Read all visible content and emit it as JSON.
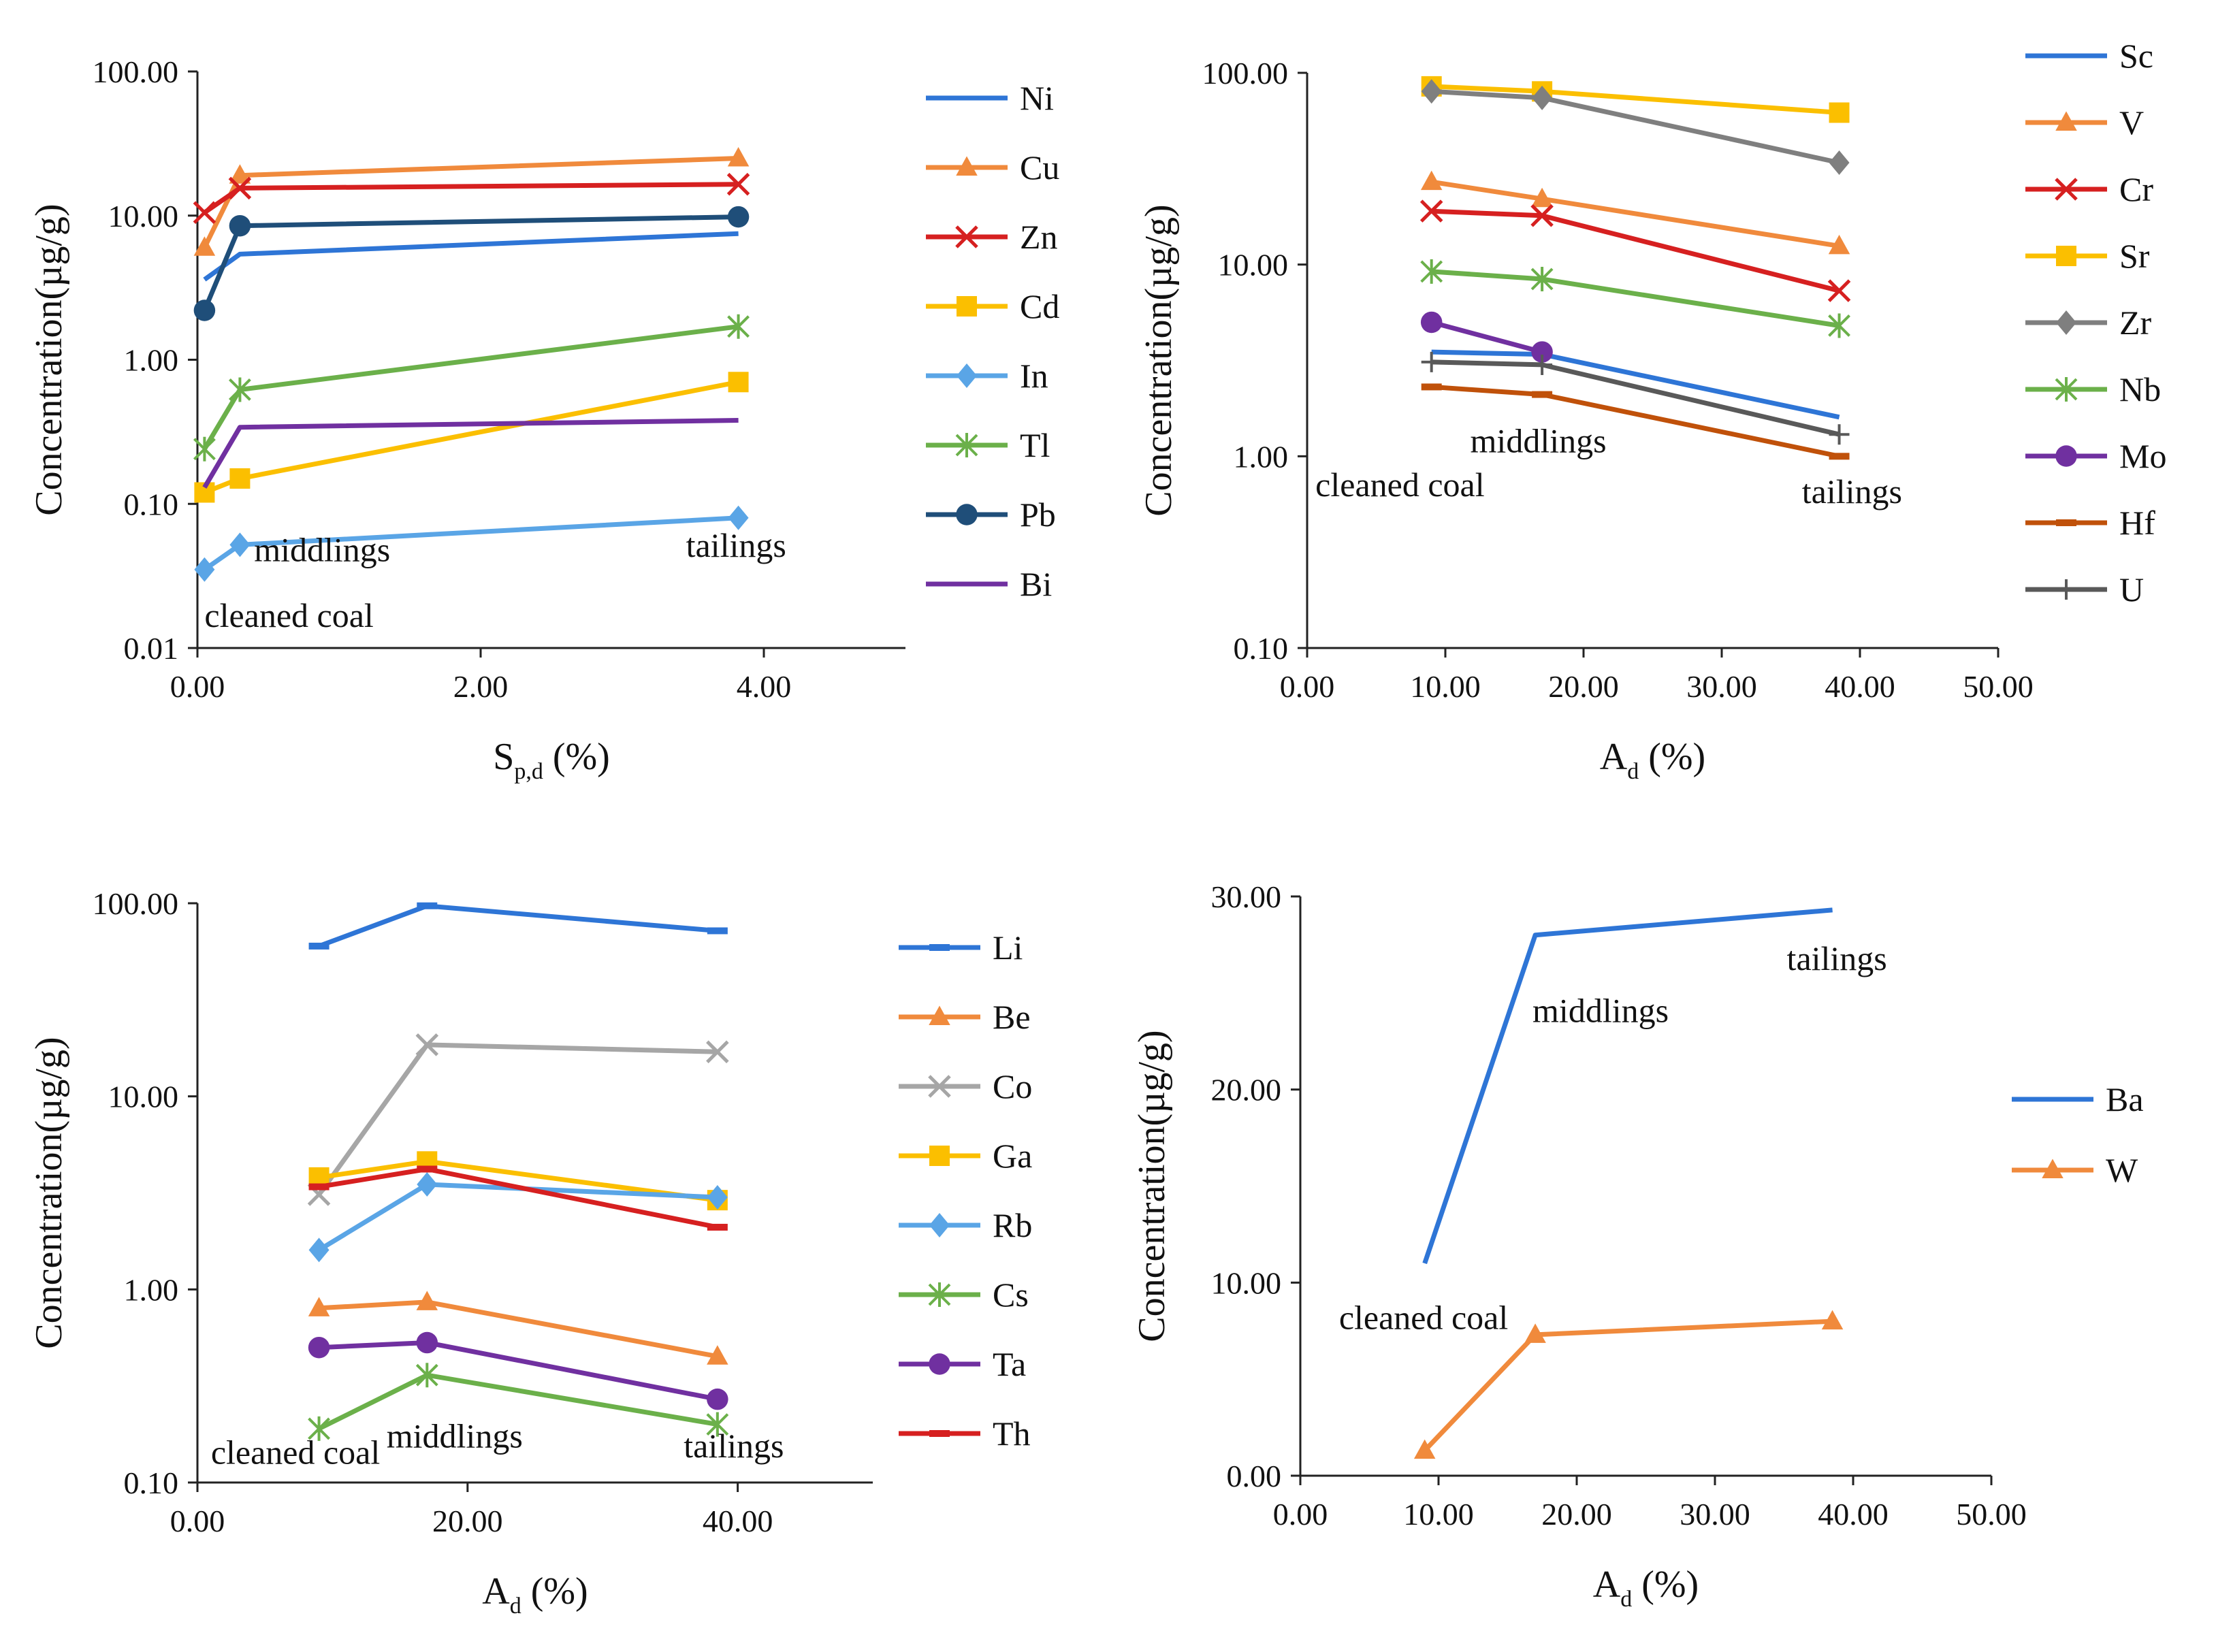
{
  "colors": {
    "blue": "#2e75d6",
    "orange": "#f08a3c",
    "red": "#d62020",
    "yellow": "#fbbf00",
    "light_blue": "#5aa5e6",
    "green": "#6bb04a",
    "navy": "#1f4e79",
    "purple": "#7030a0",
    "gray": "#7f7f7f",
    "light_gray": "#a6a6a6",
    "brown": "#c0510a",
    "dark_gray": "#595959",
    "axis": "#222222"
  },
  "chart_data": [
    {
      "id": "p1",
      "type": "line",
      "yscale": "log",
      "xlabel": "S",
      "xlabel_sub": "p,d",
      "xlabel_unit": " (%)",
      "ylabel": "Concentration(µg/g)",
      "xlim": [
        0,
        5
      ],
      "ylim": [
        0.01,
        100
      ],
      "xticks": [
        0,
        2,
        4
      ],
      "xtick_labels": [
        "0.00",
        "2.00",
        "4.00"
      ],
      "yticks": [
        0.01,
        0.1,
        1,
        10,
        100
      ],
      "ytick_labels": [
        "0.01",
        "0.10",
        "1.00",
        "10.00",
        "100.00"
      ],
      "annotations": [
        {
          "text": "cleaned coal",
          "x": 0.05,
          "y": 0.014,
          "anchor": "start"
        },
        {
          "text": "middlings",
          "x": 0.4,
          "y": 0.04,
          "anchor": "start"
        },
        {
          "text": "tailings",
          "x": 3.45,
          "y": 0.043,
          "anchor": "start"
        }
      ],
      "series": [
        {
          "name": "Ni",
          "color": "blue",
          "marker": "none",
          "x": [
            0.05,
            0.3,
            3.82
          ],
          "y": [
            3.6,
            5.4,
            7.5
          ]
        },
        {
          "name": "Cu",
          "color": "orange",
          "marker": "triangle",
          "x": [
            0.05,
            0.3,
            3.82
          ],
          "y": [
            6.0,
            19,
            25
          ]
        },
        {
          "name": "Zn",
          "color": "red",
          "marker": "x",
          "x": [
            0.05,
            0.3,
            3.82
          ],
          "y": [
            10.5,
            15.5,
            16.5
          ]
        },
        {
          "name": "Cd",
          "color": "yellow",
          "marker": "square",
          "x": [
            0.05,
            0.3,
            3.82
          ],
          "y": [
            0.12,
            0.15,
            0.7
          ]
        },
        {
          "name": "In",
          "color": "light_blue",
          "marker": "diamond",
          "x": [
            0.05,
            0.3,
            3.82
          ],
          "y": [
            0.035,
            0.052,
            0.08
          ]
        },
        {
          "name": "Tl",
          "color": "green",
          "marker": "star",
          "x": [
            0.05,
            0.3,
            3.82
          ],
          "y": [
            0.24,
            0.62,
            1.7
          ]
        },
        {
          "name": "Pb",
          "color": "navy",
          "marker": "circle",
          "x": [
            0.05,
            0.3,
            3.82
          ],
          "y": [
            2.2,
            8.5,
            9.8
          ]
        },
        {
          "name": "Bi",
          "color": "purple",
          "marker": "none",
          "x": [
            0.05,
            0.3,
            3.82
          ],
          "y": [
            0.13,
            0.34,
            0.38
          ]
        }
      ]
    },
    {
      "id": "p2",
      "type": "line",
      "yscale": "log",
      "xlabel": "A",
      "xlabel_sub": "d",
      "xlabel_unit": " (%)",
      "ylabel": "Concentration(µg/g)",
      "xlim": [
        0,
        50
      ],
      "ylim": [
        0.1,
        100
      ],
      "xticks": [
        0,
        10,
        20,
        30,
        40,
        50
      ],
      "xtick_labels": [
        "0.00",
        "10.00",
        "20.00",
        "30.00",
        "40.00",
        "50.00"
      ],
      "yticks": [
        0.1,
        1,
        10,
        100
      ],
      "ytick_labels": [
        "0.10",
        "1.00",
        "10.00",
        "100.00"
      ],
      "annotations": [
        {
          "text": "cleaned coal",
          "x": 0.6,
          "y": 0.62,
          "anchor": "start"
        },
        {
          "text": "middlings",
          "x": 11.8,
          "y": 1.05,
          "anchor": "start"
        },
        {
          "text": "tailings",
          "x": 35.8,
          "y": 0.57,
          "anchor": "start"
        }
      ],
      "series": [
        {
          "name": "Sc",
          "color": "blue",
          "marker": "none",
          "x": [
            9.0,
            17.0,
            38.5
          ],
          "y": [
            3.5,
            3.4,
            1.6
          ]
        },
        {
          "name": "V",
          "color": "orange",
          "marker": "triangle",
          "x": [
            9.0,
            17.0,
            38.5
          ],
          "y": [
            27,
            22,
            12.5
          ]
        },
        {
          "name": "Cr",
          "color": "red",
          "marker": "x",
          "x": [
            9.0,
            17.0,
            38.5
          ],
          "y": [
            19,
            18,
            7.3
          ]
        },
        {
          "name": "Sr",
          "color": "yellow",
          "marker": "square",
          "x": [
            9.0,
            17.0,
            38.5
          ],
          "y": [
            85,
            80,
            62
          ]
        },
        {
          "name": "Zr",
          "color": "gray",
          "marker": "diamond",
          "x": [
            9.0,
            17.0,
            38.5
          ],
          "y": [
            80,
            74,
            34
          ]
        },
        {
          "name": "Nb",
          "color": "green",
          "marker": "star",
          "x": [
            9.0,
            17.0,
            38.5
          ],
          "y": [
            9.2,
            8.4,
            4.8
          ]
        },
        {
          "name": "Mo",
          "color": "purple",
          "marker": "circle",
          "x": [
            9.0,
            17.0
          ],
          "y": [
            5.0,
            3.5
          ]
        },
        {
          "name": "Hf",
          "color": "brown",
          "marker": "dash",
          "x": [
            9.0,
            17.0,
            38.5
          ],
          "y": [
            2.3,
            2.1,
            1.0
          ]
        },
        {
          "name": "U",
          "color": "dark_gray",
          "marker": "plus",
          "x": [
            9.0,
            17.0,
            38.5
          ],
          "y": [
            3.1,
            3.0,
            1.3
          ]
        }
      ]
    },
    {
      "id": "p3",
      "type": "line",
      "yscale": "log",
      "xlabel": "A",
      "xlabel_sub": "d",
      "xlabel_unit": " (%)",
      "ylabel": "Concentration(µg/g)",
      "xlim": [
        0,
        50
      ],
      "ylim": [
        0.1,
        100
      ],
      "xticks": [
        0,
        20,
        40
      ],
      "xtick_labels": [
        "0.00",
        "20.00",
        "40.00"
      ],
      "yticks": [
        0.1,
        1,
        10,
        100
      ],
      "ytick_labels": [
        "0.10",
        "1.00",
        "10.00",
        "100.00"
      ],
      "annotations": [
        {
          "text": "cleaned coal",
          "x": 1.0,
          "y": 0.125,
          "anchor": "start"
        },
        {
          "text": "middlings",
          "x": 14.0,
          "y": 0.152,
          "anchor": "start"
        },
        {
          "text": "tailings",
          "x": 36.0,
          "y": 0.135,
          "anchor": "start"
        }
      ],
      "series": [
        {
          "name": "Li",
          "color": "blue",
          "marker": "dash",
          "x": [
            9.0,
            17.0,
            38.5
          ],
          "y": [
            60,
            97,
            72
          ]
        },
        {
          "name": "Be",
          "color": "orange",
          "marker": "triangle",
          "x": [
            9.0,
            17.0,
            38.5
          ],
          "y": [
            0.8,
            0.86,
            0.45
          ]
        },
        {
          "name": "Co",
          "color": "light_gray",
          "marker": "x",
          "x": [
            9.0,
            17.0,
            38.5
          ],
          "y": [
            3.1,
            18.5,
            17
          ]
        },
        {
          "name": "Ga",
          "color": "yellow",
          "marker": "square",
          "x": [
            9.0,
            17.0,
            38.5
          ],
          "y": [
            3.8,
            4.6,
            2.9
          ]
        },
        {
          "name": "Rb",
          "color": "light_blue",
          "marker": "diamond",
          "x": [
            9.0,
            17.0,
            38.5
          ],
          "y": [
            1.6,
            3.5,
            3.0
          ]
        },
        {
          "name": "Cs",
          "color": "green",
          "marker": "star",
          "x": [
            9.0,
            17.0,
            38.5
          ],
          "y": [
            0.19,
            0.36,
            0.2
          ]
        },
        {
          "name": "Ta",
          "color": "purple",
          "marker": "circle",
          "x": [
            9.0,
            17.0,
            38.5
          ],
          "y": [
            0.5,
            0.53,
            0.27
          ]
        },
        {
          "name": "Th",
          "color": "red",
          "marker": "dash",
          "x": [
            9.0,
            17.0,
            38.5
          ],
          "y": [
            3.4,
            4.2,
            2.1
          ]
        }
      ]
    },
    {
      "id": "p4",
      "type": "line",
      "yscale": "linear",
      "xlabel": "A",
      "xlabel_sub": "d",
      "xlabel_unit": " (%)",
      "ylabel": "Concentration(µg/g)",
      "xlim": [
        0,
        50
      ],
      "ylim": [
        0,
        30
      ],
      "xticks": [
        0,
        10,
        20,
        30,
        40,
        50
      ],
      "xtick_labels": [
        "0.00",
        "10.00",
        "20.00",
        "30.00",
        "40.00",
        "50.00"
      ],
      "yticks": [
        0,
        10,
        20,
        30
      ],
      "ytick_labels": [
        "0.00",
        "10.00",
        "20.00",
        "30.00"
      ],
      "annotations": [
        {
          "text": "cleaned coal",
          "x": 2.8,
          "y": 7.6,
          "anchor": "start"
        },
        {
          "text": "middlings",
          "x": 16.8,
          "y": 23.5,
          "anchor": "start"
        },
        {
          "text": "tailings",
          "x": 35.2,
          "y": 26.2,
          "anchor": "start"
        }
      ],
      "series": [
        {
          "name": "Ba",
          "color": "blue",
          "marker": "none",
          "x": [
            9.0,
            17.0,
            38.5
          ],
          "y": [
            11.0,
            28.0,
            29.3
          ]
        },
        {
          "name": "W",
          "color": "orange",
          "marker": "triangle",
          "x": [
            9.0,
            17.0,
            38.5
          ],
          "y": [
            1.3,
            7.3,
            8.0
          ]
        }
      ]
    }
  ]
}
